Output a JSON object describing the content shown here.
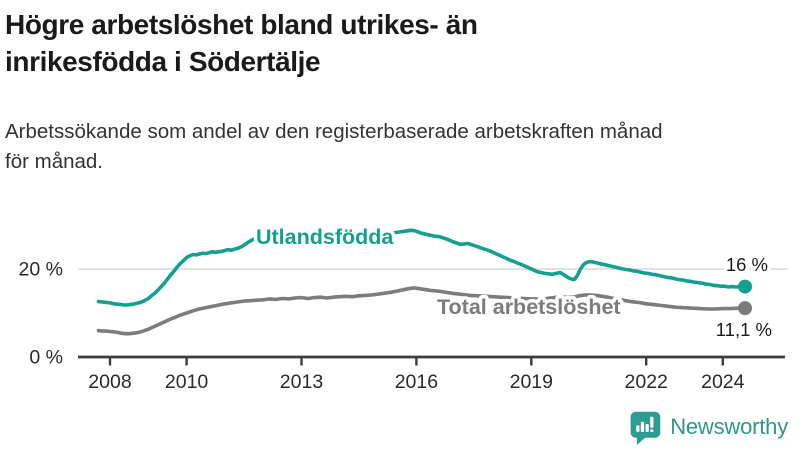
{
  "header": {
    "title_lines": [
      "Högre arbetslöshet bland utrikes- än",
      "inrikesfödda i Södertälje"
    ],
    "subtitle_lines": [
      "Arbetssökande som andel av den registerbaserade arbetskraften månad",
      "för månad."
    ]
  },
  "colors": {
    "accent_teal": "#14a08f",
    "series_total_gray": "#7c7c7c",
    "grid": "#d8d8d8",
    "axis": "#3d3d3d",
    "tick_text": "#2b2b2b",
    "value_text": "#1a1a1a",
    "logo_teal": "#2f968b"
  },
  "branding": {
    "name": "Newsworthy",
    "icon": "speech-bubble-bar-chart"
  },
  "chart_data": {
    "type": "line",
    "title": "Högre arbetslöshet bland utrikes- än inrikesfödda i Södertälje",
    "subtitle": "Arbetssökande som andel av den registerbaserade arbetskraften månad för månad.",
    "xlabel": "",
    "ylabel": "",
    "x_axis": {
      "unit": "year",
      "ticks": [
        2008,
        2010,
        2013,
        2016,
        2019,
        2022,
        2024
      ],
      "range": [
        2007.7,
        2025.6
      ]
    },
    "y_axis": {
      "unit": "%",
      "ticks": [
        {
          "value": 0,
          "label": "0 %"
        },
        {
          "value": 20,
          "label": "20 %"
        }
      ],
      "range": [
        0,
        31
      ]
    },
    "grid": "horizontal-only",
    "legend": "inline-labels-on-line",
    "series": [
      {
        "name": "Utlandsfödda",
        "color": "#14a08f",
        "end_label": "16 %",
        "end_value": 16.0,
        "points": [
          [
            2007.7,
            12.6
          ],
          [
            2007.8,
            12.5
          ],
          [
            2007.9,
            12.4
          ],
          [
            2008.0,
            12.3
          ],
          [
            2008.1,
            12.1
          ],
          [
            2008.2,
            12.0
          ],
          [
            2008.3,
            11.9
          ],
          [
            2008.4,
            11.8
          ],
          [
            2008.5,
            11.9
          ],
          [
            2008.6,
            12.0
          ],
          [
            2008.7,
            12.2
          ],
          [
            2008.8,
            12.4
          ],
          [
            2008.9,
            12.8
          ],
          [
            2009.0,
            13.3
          ],
          [
            2009.08,
            13.9
          ],
          [
            2009.17,
            14.5
          ],
          [
            2009.25,
            15.2
          ],
          [
            2009.33,
            15.9
          ],
          [
            2009.42,
            16.8
          ],
          [
            2009.5,
            17.7
          ],
          [
            2009.58,
            18.6
          ],
          [
            2009.67,
            19.5
          ],
          [
            2009.75,
            20.4
          ],
          [
            2009.83,
            21.2
          ],
          [
            2009.92,
            21.9
          ],
          [
            2010.0,
            22.6
          ],
          [
            2010.08,
            23.0
          ],
          [
            2010.17,
            23.3
          ],
          [
            2010.25,
            23.2
          ],
          [
            2010.33,
            23.4
          ],
          [
            2010.42,
            23.6
          ],
          [
            2010.5,
            23.5
          ],
          [
            2010.58,
            23.7
          ],
          [
            2010.67,
            23.9
          ],
          [
            2010.75,
            23.8
          ],
          [
            2010.83,
            23.9
          ],
          [
            2010.92,
            24.0
          ],
          [
            2011.0,
            24.2
          ],
          [
            2011.08,
            24.4
          ],
          [
            2011.17,
            24.3
          ],
          [
            2011.25,
            24.5
          ],
          [
            2011.33,
            24.7
          ],
          [
            2011.42,
            25.0
          ],
          [
            2011.5,
            25.4
          ],
          [
            2011.58,
            25.9
          ],
          [
            2011.67,
            26.4
          ],
          [
            2011.75,
            26.8
          ],
          [
            2011.83,
            27.0
          ],
          [
            2012.0,
            27.2
          ],
          [
            2012.25,
            27.4
          ],
          [
            2012.5,
            27.6
          ],
          [
            2012.75,
            27.7
          ],
          [
            2013.0,
            27.8
          ],
          [
            2013.25,
            27.9
          ],
          [
            2013.5,
            28.0
          ],
          [
            2013.75,
            28.0
          ],
          [
            2014.0,
            28.1
          ],
          [
            2014.25,
            28.2
          ],
          [
            2014.5,
            28.2
          ],
          [
            2014.75,
            28.3
          ],
          [
            2015.0,
            28.3
          ],
          [
            2015.25,
            28.3
          ],
          [
            2015.4,
            28.2
          ],
          [
            2015.55,
            28.4
          ],
          [
            2015.7,
            28.6
          ],
          [
            2015.85,
            28.8
          ],
          [
            2015.95,
            28.7
          ],
          [
            2016.05,
            28.4
          ],
          [
            2016.15,
            28.1
          ],
          [
            2016.25,
            27.9
          ],
          [
            2016.35,
            27.7
          ],
          [
            2016.45,
            27.5
          ],
          [
            2016.55,
            27.4
          ],
          [
            2016.65,
            27.2
          ],
          [
            2016.75,
            26.9
          ],
          [
            2016.85,
            26.6
          ],
          [
            2016.95,
            26.2
          ],
          [
            2017.05,
            25.9
          ],
          [
            2017.15,
            25.6
          ],
          [
            2017.25,
            25.7
          ],
          [
            2017.35,
            25.8
          ],
          [
            2017.45,
            25.5
          ],
          [
            2017.55,
            25.2
          ],
          [
            2017.65,
            24.9
          ],
          [
            2017.75,
            24.6
          ],
          [
            2017.85,
            24.3
          ],
          [
            2017.95,
            24.0
          ],
          [
            2018.05,
            23.6
          ],
          [
            2018.15,
            23.2
          ],
          [
            2018.25,
            22.8
          ],
          [
            2018.35,
            22.4
          ],
          [
            2018.45,
            22.0
          ],
          [
            2018.55,
            21.7
          ],
          [
            2018.65,
            21.3
          ],
          [
            2018.75,
            21.0
          ],
          [
            2018.85,
            20.6
          ],
          [
            2018.95,
            20.2
          ],
          [
            2019.05,
            19.8
          ],
          [
            2019.15,
            19.4
          ],
          [
            2019.25,
            19.2
          ],
          [
            2019.35,
            19.0
          ],
          [
            2019.45,
            18.9
          ],
          [
            2019.55,
            18.8
          ],
          [
            2019.65,
            19.0
          ],
          [
            2019.75,
            19.2
          ],
          [
            2019.85,
            18.7
          ],
          [
            2019.95,
            18.1
          ],
          [
            2020.05,
            17.7
          ],
          [
            2020.12,
            17.6
          ],
          [
            2020.2,
            18.5
          ],
          [
            2020.28,
            19.9
          ],
          [
            2020.36,
            21.0
          ],
          [
            2020.45,
            21.5
          ],
          [
            2020.55,
            21.7
          ],
          [
            2020.65,
            21.5
          ],
          [
            2020.75,
            21.3
          ],
          [
            2020.85,
            21.1
          ],
          [
            2020.95,
            20.9
          ],
          [
            2021.05,
            20.7
          ],
          [
            2021.15,
            20.5
          ],
          [
            2021.25,
            20.3
          ],
          [
            2021.35,
            20.1
          ],
          [
            2021.45,
            19.9
          ],
          [
            2021.55,
            19.8
          ],
          [
            2021.65,
            19.6
          ],
          [
            2021.75,
            19.5
          ],
          [
            2021.85,
            19.3
          ],
          [
            2021.95,
            19.1
          ],
          [
            2022.05,
            19.0
          ],
          [
            2022.15,
            18.8
          ],
          [
            2022.25,
            18.7
          ],
          [
            2022.35,
            18.5
          ],
          [
            2022.45,
            18.3
          ],
          [
            2022.55,
            18.1
          ],
          [
            2022.65,
            18.0
          ],
          [
            2022.75,
            17.8
          ],
          [
            2022.85,
            17.6
          ],
          [
            2022.95,
            17.5
          ],
          [
            2023.05,
            17.3
          ],
          [
            2023.15,
            17.2
          ],
          [
            2023.25,
            17.0
          ],
          [
            2023.35,
            16.9
          ],
          [
            2023.45,
            16.8
          ],
          [
            2023.55,
            16.6
          ],
          [
            2023.65,
            16.5
          ],
          [
            2023.75,
            16.3
          ],
          [
            2023.85,
            16.2
          ],
          [
            2023.95,
            16.1
          ],
          [
            2024.05,
            16.1
          ],
          [
            2024.15,
            15.9
          ],
          [
            2024.25,
            16.0
          ],
          [
            2024.35,
            15.9
          ],
          [
            2024.45,
            16.0
          ],
          [
            2024.58,
            16.0
          ]
        ]
      },
      {
        "name": "Total arbetslöshet",
        "color": "#7c7c7c",
        "end_label": "11,1 %",
        "end_value": 11.1,
        "points": [
          [
            2007.7,
            6.0
          ],
          [
            2007.8,
            5.9
          ],
          [
            2007.9,
            5.9
          ],
          [
            2008.0,
            5.8
          ],
          [
            2008.1,
            5.7
          ],
          [
            2008.2,
            5.6
          ],
          [
            2008.3,
            5.4
          ],
          [
            2008.4,
            5.3
          ],
          [
            2008.5,
            5.3
          ],
          [
            2008.6,
            5.4
          ],
          [
            2008.7,
            5.5
          ],
          [
            2008.8,
            5.7
          ],
          [
            2008.9,
            6.0
          ],
          [
            2009.0,
            6.3
          ],
          [
            2009.1,
            6.7
          ],
          [
            2009.2,
            7.1
          ],
          [
            2009.3,
            7.5
          ],
          [
            2009.4,
            7.9
          ],
          [
            2009.5,
            8.3
          ],
          [
            2009.6,
            8.7
          ],
          [
            2009.7,
            9.0
          ],
          [
            2009.8,
            9.4
          ],
          [
            2009.9,
            9.7
          ],
          [
            2010.0,
            10.0
          ],
          [
            2010.17,
            10.5
          ],
          [
            2010.33,
            10.9
          ],
          [
            2010.5,
            11.2
          ],
          [
            2010.67,
            11.5
          ],
          [
            2010.83,
            11.8
          ],
          [
            2011.0,
            12.1
          ],
          [
            2011.17,
            12.3
          ],
          [
            2011.33,
            12.5
          ],
          [
            2011.5,
            12.7
          ],
          [
            2011.67,
            12.8
          ],
          [
            2011.83,
            12.9
          ],
          [
            2012.0,
            13.0
          ],
          [
            2012.17,
            13.2
          ],
          [
            2012.33,
            13.1
          ],
          [
            2012.5,
            13.3
          ],
          [
            2012.67,
            13.2
          ],
          [
            2012.83,
            13.4
          ],
          [
            2013.0,
            13.5
          ],
          [
            2013.17,
            13.3
          ],
          [
            2013.33,
            13.5
          ],
          [
            2013.5,
            13.6
          ],
          [
            2013.67,
            13.4
          ],
          [
            2013.83,
            13.6
          ],
          [
            2014.0,
            13.7
          ],
          [
            2014.17,
            13.8
          ],
          [
            2014.33,
            13.7
          ],
          [
            2014.5,
            13.9
          ],
          [
            2014.67,
            14.0
          ],
          [
            2014.83,
            14.1
          ],
          [
            2015.0,
            14.3
          ],
          [
            2015.17,
            14.5
          ],
          [
            2015.33,
            14.7
          ],
          [
            2015.5,
            15.0
          ],
          [
            2015.67,
            15.3
          ],
          [
            2015.83,
            15.6
          ],
          [
            2015.95,
            15.7
          ],
          [
            2016.1,
            15.5
          ],
          [
            2016.25,
            15.3
          ],
          [
            2016.4,
            15.1
          ],
          [
            2016.55,
            15.0
          ],
          [
            2016.7,
            14.8
          ],
          [
            2016.85,
            14.6
          ],
          [
            2017.0,
            14.4
          ],
          [
            2017.2,
            14.2
          ],
          [
            2017.4,
            14.0
          ],
          [
            2017.6,
            13.9
          ],
          [
            2017.8,
            13.8
          ],
          [
            2018.0,
            13.7
          ],
          [
            2018.2,
            13.6
          ],
          [
            2018.4,
            13.5
          ],
          [
            2018.6,
            13.4
          ],
          [
            2018.8,
            13.3
          ],
          [
            2019.0,
            13.2
          ],
          [
            2019.2,
            13.2
          ],
          [
            2019.4,
            13.3
          ],
          [
            2019.6,
            13.5
          ],
          [
            2019.8,
            13.7
          ],
          [
            2019.95,
            13.5
          ],
          [
            2020.1,
            13.6
          ],
          [
            2020.25,
            13.9
          ],
          [
            2020.4,
            14.1
          ],
          [
            2020.55,
            14.1
          ],
          [
            2020.7,
            14.0
          ],
          [
            2020.85,
            13.8
          ],
          [
            2021.0,
            13.6
          ],
          [
            2021.2,
            13.2
          ],
          [
            2021.4,
            12.9
          ],
          [
            2021.6,
            12.6
          ],
          [
            2021.8,
            12.4
          ],
          [
            2022.0,
            12.1
          ],
          [
            2022.2,
            11.9
          ],
          [
            2022.4,
            11.7
          ],
          [
            2022.6,
            11.5
          ],
          [
            2022.8,
            11.3
          ],
          [
            2023.0,
            11.2
          ],
          [
            2023.2,
            11.1
          ],
          [
            2023.4,
            11.0
          ],
          [
            2023.6,
            10.9
          ],
          [
            2023.8,
            10.9
          ],
          [
            2024.0,
            11.0
          ],
          [
            2024.2,
            11.0
          ],
          [
            2024.4,
            11.1
          ],
          [
            2024.58,
            11.1
          ]
        ]
      }
    ]
  }
}
